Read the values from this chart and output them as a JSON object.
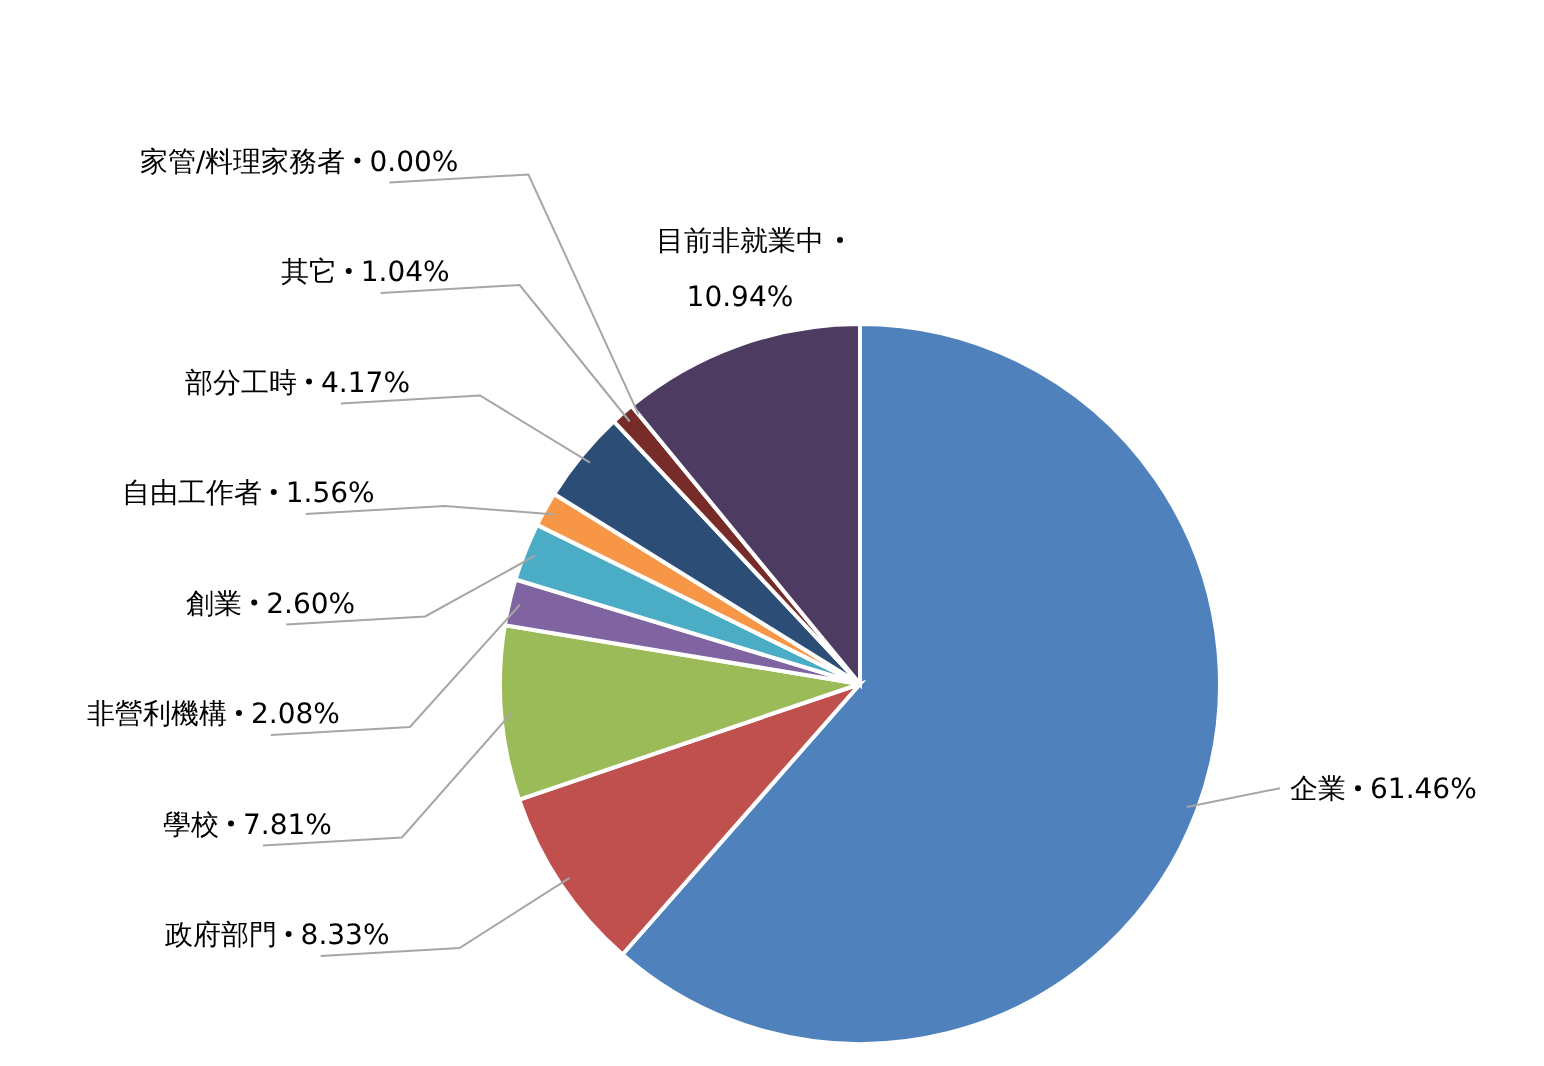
{
  "chart_data": {
    "type": "pie",
    "categories": [
      "企業",
      "政府部門",
      "學校",
      "非營利機構",
      "創業",
      "自由工作者",
      "部分工時",
      "其它",
      "家管/料理家務者",
      "目前非就業中"
    ],
    "values": [
      61.46,
      8.33,
      7.81,
      2.08,
      2.6,
      1.56,
      4.17,
      1.04,
      0.0,
      10.94
    ],
    "value_labels": [
      "61.46%",
      "8.33%",
      "7.81%",
      "2.08%",
      "2.60%",
      "1.56%",
      "4.17%",
      "1.04%",
      "0.00%",
      "10.94%"
    ],
    "colors": [
      "#4f81bd",
      "#c0504d",
      "#9bbb59",
      "#8064a2",
      "#4bacc6",
      "#f79646",
      "#2c4d75",
      "#772c2a",
      null,
      "#4d3b62"
    ]
  }
}
